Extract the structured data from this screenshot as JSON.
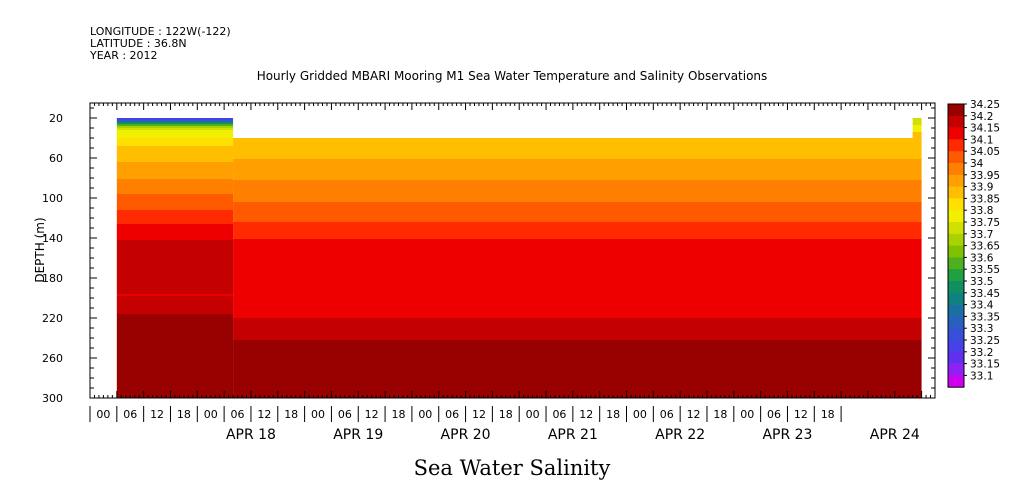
{
  "header": {
    "longitude": "LONGITUDE : 122W(-122)",
    "latitude": "LATITUDE : 36.8N",
    "year": "YEAR : 2012"
  },
  "chart_data": {
    "type": "heatmap",
    "title": "Hourly Gridded MBARI Mooring M1 Sea Water Temperature and Salinity Observations",
    "subtitle": "Sea Water Salinity",
    "xlabel": "",
    "ylabel": "DEPTH (m)",
    "xlim": [
      "2012-04-17 00:00",
      "2012-04-24 21:00"
    ],
    "ylim": [
      300,
      5
    ],
    "y_ticks": [
      20,
      60,
      100,
      140,
      180,
      220,
      260,
      300
    ],
    "x_hour_ticks": [
      "00",
      "06",
      "12",
      "18",
      "00",
      "06",
      "12",
      "18",
      "00",
      "06",
      "12",
      "18",
      "00",
      "06",
      "12",
      "18",
      "00",
      "06",
      "12",
      "18",
      "00",
      "06",
      "12",
      "18",
      "00",
      "06",
      "12",
      "18"
    ],
    "x_date_labels": [
      "APR 18",
      "APR 19",
      "APR 20",
      "APR 21",
      "APR 22",
      "APR 23",
      "APR 24"
    ],
    "color_levels": [
      34.25,
      34.2,
      34.15,
      34.1,
      34.05,
      34,
      33.95,
      33.9,
      33.85,
      33.8,
      33.75,
      33.7,
      33.65,
      33.6,
      33.55,
      33.5,
      33.45,
      33.4,
      33.35,
      33.3,
      33.25,
      33.2,
      33.15,
      33.1
    ],
    "colors": [
      "#990000",
      "#c40000",
      "#ee0000",
      "#ff2a00",
      "#ff5a00",
      "#ff7f00",
      "#ffa000",
      "#ffbf00",
      "#ffe000",
      "#f0f000",
      "#d0e000",
      "#aad200",
      "#7fc200",
      "#4fb01e",
      "#20a040",
      "#109060",
      "#108080",
      "#1a70a0",
      "#2860c0",
      "#3850d8",
      "#4840e8",
      "#6030f0",
      "#9020f4",
      "#d000f0"
    ],
    "data_extent": {
      "start": "2012-04-17 06:00",
      "end": "2012-04-24 18:00"
    },
    "grid": false,
    "legend_placement": "right",
    "segments": [
      {
        "start": "2012-04-17 06:00",
        "end": "2012-04-18 08:00",
        "bands": [
          {
            "top": 20,
            "bottom": 22,
            "value": 33.22
          },
          {
            "top": 22,
            "bottom": 24,
            "value": 33.33
          },
          {
            "top": 24,
            "bottom": 26,
            "value": 33.48
          },
          {
            "top": 26,
            "bottom": 28,
            "value": 33.58
          },
          {
            "top": 28,
            "bottom": 30,
            "value": 33.66
          },
          {
            "top": 30,
            "bottom": 32,
            "value": 33.74
          },
          {
            "top": 32,
            "bottom": 36,
            "value": 33.77
          },
          {
            "top": 36,
            "bottom": 40,
            "value": 33.79
          },
          {
            "top": 40,
            "bottom": 48,
            "value": 33.82
          },
          {
            "top": 48,
            "bottom": 64,
            "value": 33.87
          },
          {
            "top": 64,
            "bottom": 81,
            "value": 33.92
          },
          {
            "top": 81,
            "bottom": 96,
            "value": 33.97
          },
          {
            "top": 96,
            "bottom": 112,
            "value": 34.02
          },
          {
            "top": 112,
            "bottom": 126,
            "value": 34.07
          },
          {
            "top": 126,
            "bottom": 142,
            "value": 34.12
          },
          {
            "top": 142,
            "bottom": 196,
            "value": 34.17
          },
          {
            "top": 196,
            "bottom": 198,
            "value": 34.12
          },
          {
            "top": 198,
            "bottom": 216,
            "value": 34.17
          },
          {
            "top": 216,
            "bottom": 232,
            "value": 34.22
          },
          {
            "top": 232,
            "bottom": 280,
            "value": 34.27
          },
          {
            "top": 280,
            "bottom": 300,
            "value": 34.22
          }
        ]
      },
      {
        "start": "2012-04-17 19:00",
        "end": "2012-04-18 08:00",
        "bands": [
          {
            "top": 36,
            "bottom": 40,
            "value": 33.77
          }
        ]
      },
      {
        "start": "2012-04-18 08:00",
        "end": "2012-04-24 18:00",
        "bands": [
          {
            "top": 40,
            "bottom": 61,
            "value": 33.87
          },
          {
            "top": 61,
            "bottom": 82,
            "value": 33.92
          },
          {
            "top": 82,
            "bottom": 104,
            "value": 33.97
          },
          {
            "top": 104,
            "bottom": 124,
            "value": 34.02
          },
          {
            "top": 124,
            "bottom": 141,
            "value": 34.07
          },
          {
            "top": 141,
            "bottom": 220,
            "value": 34.12
          },
          {
            "top": 220,
            "bottom": 242,
            "value": 34.17
          },
          {
            "top": 242,
            "bottom": 300,
            "value": 34.22
          }
        ]
      },
      {
        "start": "2012-04-24 16:00",
        "end": "2012-04-24 18:00",
        "bands": [
          {
            "top": 20,
            "bottom": 27,
            "value": 33.72
          },
          {
            "top": 27,
            "bottom": 34,
            "value": 33.77
          },
          {
            "top": 34,
            "bottom": 40,
            "value": 33.87
          }
        ]
      }
    ]
  }
}
